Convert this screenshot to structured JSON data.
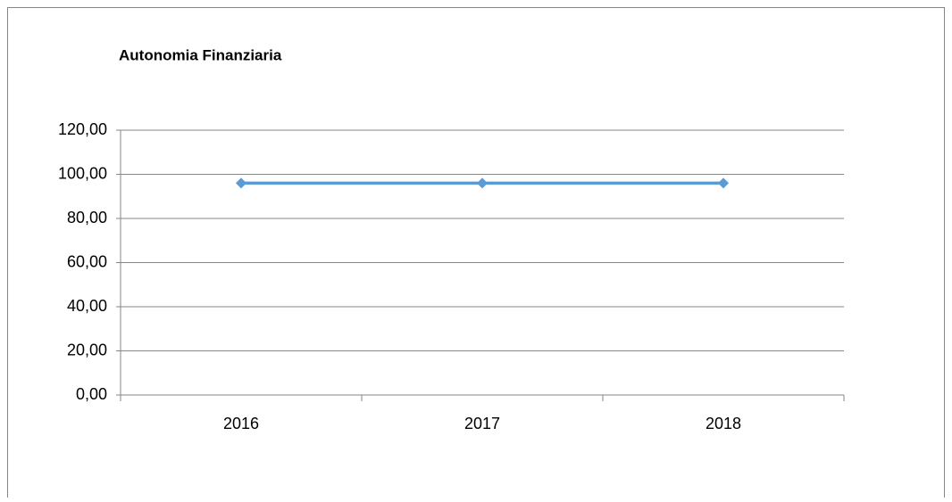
{
  "chart_data": {
    "type": "line",
    "title": "Autonomia Finanziaria",
    "categories": [
      "2016",
      "2017",
      "2018"
    ],
    "series": [
      {
        "name": "Autonomia Finanziaria",
        "color": "#5b9bd5",
        "values": [
          96,
          96,
          96
        ]
      }
    ],
    "ylim": [
      0,
      120
    ],
    "yticks": [
      {
        "value": 0,
        "label": "0,00"
      },
      {
        "value": 20,
        "label": "20,00"
      },
      {
        "value": 40,
        "label": "40,00"
      },
      {
        "value": 60,
        "label": "60,00"
      },
      {
        "value": 80,
        "label": "80,00"
      },
      {
        "value": 100,
        "label": "100,00"
      },
      {
        "value": 120,
        "label": "120,00"
      }
    ],
    "grid": true,
    "legend": false
  }
}
